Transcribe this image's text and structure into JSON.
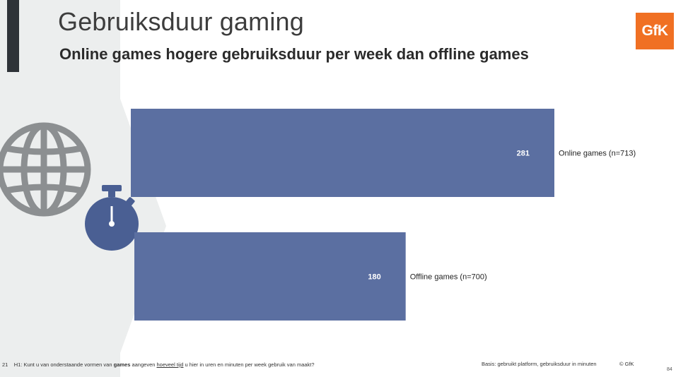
{
  "header": {
    "title": "Gebruiksduur gaming",
    "subtitle": "Online games hogere gebruiksduur per week dan offline games",
    "logo_text": "GfK"
  },
  "chart_data": {
    "type": "bar",
    "orientation": "horizontal",
    "categories": [
      "Online games (n=713)",
      "Offline games (n=700)"
    ],
    "values": [
      281,
      180
    ],
    "title": "",
    "xlabel": "",
    "ylabel": "",
    "bar_color": "#5b6fa1"
  },
  "icons": {
    "globe": "globe-icon",
    "stopwatch": "stopwatch-icon"
  },
  "footer": {
    "slide_num": "21",
    "question_prefix": "H1: Kunt u van onderstaande vormen van ",
    "question_bold": "games",
    "question_mid": " aangeven ",
    "question_underline": "hoeveel tijd",
    "question_suffix": " u hier in uren en minuten per week gebruik van maakt?",
    "basis": "Basis: gebruikt platform, gebruiksduur in minuten",
    "copyright": "© GfK",
    "page_number": "84"
  },
  "colors": {
    "bar": "#5b6fa1",
    "accent": "#f07023",
    "panel": "#eceeee",
    "icon_grey": "#8c8f91",
    "icon_blue": "#4a5f93"
  }
}
